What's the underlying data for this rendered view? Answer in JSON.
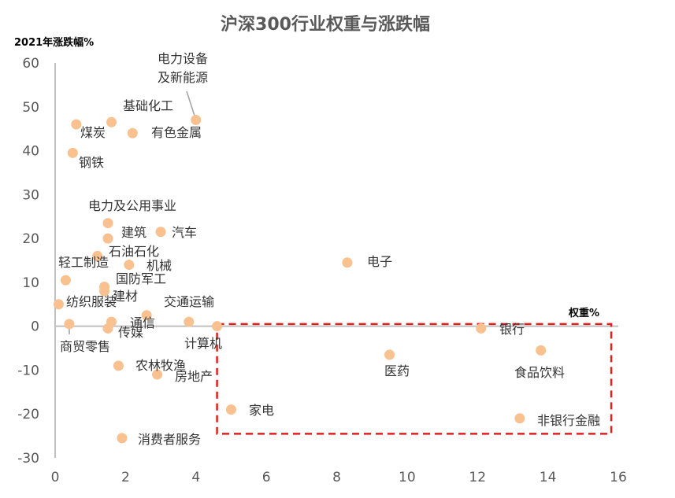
{
  "chart_data": {
    "type": "scatter",
    "title": "沪深300行业权重与涨跌幅",
    "xlabel": "权重%",
    "ylabel": "2021年涨跌幅%",
    "xlim": [
      0,
      16
    ],
    "ylim": [
      -30,
      60
    ],
    "xticks": [
      0,
      2,
      4,
      6,
      8,
      10,
      12,
      14,
      16
    ],
    "yticks": [
      -30,
      -20,
      -10,
      0,
      10,
      20,
      30,
      40,
      50,
      60
    ],
    "points": [
      {
        "label": "电力设备\n及新能源",
        "x": 4.0,
        "y": 47
      },
      {
        "label": "基础化工",
        "x": 1.6,
        "y": 46.5
      },
      {
        "label": "煤炭",
        "x": 0.6,
        "y": 46
      },
      {
        "label": "有色金属",
        "x": 2.2,
        "y": 44
      },
      {
        "label": "钢铁",
        "x": 0.5,
        "y": 39.5
      },
      {
        "label": "电力及公用事业",
        "x": 1.5,
        "y": 23.5
      },
      {
        "label": "汽车",
        "x": 3.0,
        "y": 21.5
      },
      {
        "label": "建筑",
        "x": 1.5,
        "y": 20
      },
      {
        "label": "石油石化",
        "x": 1.2,
        "y": 16
      },
      {
        "label": "机械",
        "x": 2.1,
        "y": 14
      },
      {
        "label": "电子",
        "x": 8.3,
        "y": 14.5
      },
      {
        "label": "轻工制造",
        "x": 0.3,
        "y": 10.5
      },
      {
        "label": "国防军工",
        "x": 1.4,
        "y": 9
      },
      {
        "label": "建材",
        "x": 1.4,
        "y": 8
      },
      {
        "label": "纺织服装",
        "x": 0.1,
        "y": 5
      },
      {
        "label": "交通运输",
        "x": 3.8,
        "y": 1
      },
      {
        "label": "通信",
        "x": 2.6,
        "y": 2.5
      },
      {
        "label": "传媒",
        "x": 1.6,
        "y": 1
      },
      {
        "label": "商贸零售",
        "x": 0.4,
        "y": 0.5
      },
      {
        "label": "",
        "x": 1.5,
        "y": -0.5
      },
      {
        "label": "计算机",
        "x": 4.6,
        "y": 0
      },
      {
        "label": "银行",
        "x": 12.1,
        "y": -0.5
      },
      {
        "label": "医药",
        "x": 9.5,
        "y": -6.5
      },
      {
        "label": "食品饮料",
        "x": 13.8,
        "y": -5.5
      },
      {
        "label": "农林牧渔",
        "x": 1.8,
        "y": -9
      },
      {
        "label": "房地产",
        "x": 2.9,
        "y": -11
      },
      {
        "label": "家电",
        "x": 5.0,
        "y": -19
      },
      {
        "label": "非银行金融",
        "x": 13.2,
        "y": -21
      },
      {
        "label": "消费者服务",
        "x": 1.9,
        "y": -25.5
      }
    ],
    "highlight_box": {
      "x": [
        4.6,
        15.8
      ],
      "y": [
        -24.5,
        0.5
      ]
    },
    "grid": false,
    "legend": "none"
  },
  "colors": {
    "marker": "#f8c18f",
    "highlight": "#e0201c",
    "axis": "#bfbfbf",
    "title": "#595959"
  }
}
